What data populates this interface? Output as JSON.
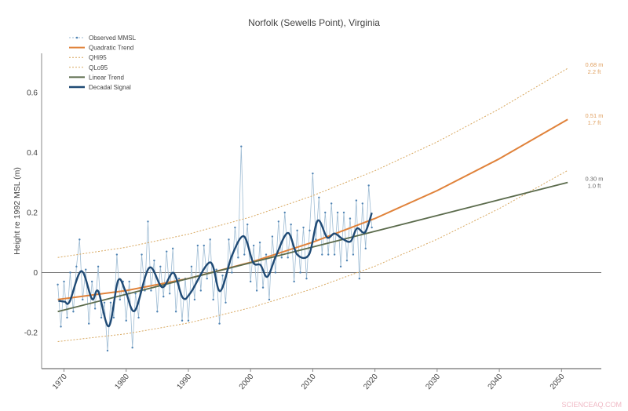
{
  "chart_data": {
    "type": "line",
    "title": "Norfolk (Sewells Point), Virginia",
    "xlabel": "",
    "ylabel": "Height re 1992 MSL (m)",
    "xlim": [
      1966.4,
      2056.4
    ],
    "ylim": [
      -0.32,
      0.73
    ],
    "x_ticks": [
      "1970",
      "1980",
      "1990",
      "2000",
      "2010",
      "2020",
      "2030",
      "2040",
      "2050"
    ],
    "y_ticks": [
      "0.6",
      "0.4",
      "0.2",
      "0",
      "-0.2"
    ],
    "grid": false,
    "legend_position": "top-left",
    "colors": {
      "observed_line": "#9dbbd3",
      "observed_marker": "#4f83b3",
      "quadratic": "#e0823a",
      "band": "#d8a860",
      "linear": "#5b6b4c",
      "decadal": "#1f4a75",
      "zero_line": "#777777",
      "annotation_orange": "#e0a060",
      "annotation_gray": "#666666"
    },
    "series": [
      {
        "name": "Observed MMSL",
        "style": "line+markers",
        "x_start": 1969,
        "x_step": 0.5,
        "values": [
          -0.04,
          -0.18,
          -0.03,
          -0.15,
          0.0,
          -0.13,
          0.02,
          0.11,
          -0.09,
          0.01,
          -0.17,
          -0.03,
          -0.12,
          0.02,
          -0.15,
          -0.1,
          -0.26,
          -0.1,
          -0.15,
          0.06,
          -0.09,
          -0.03,
          -0.16,
          -0.03,
          -0.25,
          -0.07,
          -0.15,
          0.06,
          -0.06,
          0.17,
          -0.06,
          0.04,
          -0.13,
          0.02,
          -0.08,
          0.07,
          -0.07,
          0.08,
          -0.13,
          -0.02,
          -0.16,
          -0.02,
          -0.16,
          0.02,
          -0.09,
          0.09,
          -0.06,
          0.09,
          -0.02,
          0.11,
          -0.09,
          0.01,
          -0.17,
          -0.01,
          -0.1,
          0.11,
          0.0,
          0.15,
          0.05,
          0.42,
          0.06,
          0.16,
          -0.03,
          0.09,
          -0.06,
          0.1,
          -0.05,
          0.06,
          -0.09,
          0.12,
          0.0,
          0.17,
          0.05,
          0.2,
          0.05,
          0.16,
          -0.03,
          0.14,
          0.0,
          0.15,
          -0.02,
          0.14,
          0.33,
          0.11,
          0.25,
          0.06,
          0.2,
          0.06,
          0.23,
          0.06,
          0.2,
          0.02,
          0.2,
          0.04,
          0.18,
          0.06,
          0.24,
          -0.02,
          0.23,
          0.08,
          0.29,
          0.15
        ]
      },
      {
        "name": "Quadratic Trend",
        "style": "solid",
        "x": [
          1969,
          1980,
          1990,
          2000,
          2010,
          2020,
          2030,
          2040,
          2051
        ],
        "y": [
          -0.09,
          -0.06,
          -0.02,
          0.034,
          0.101,
          0.18,
          0.273,
          0.379,
          0.51
        ]
      },
      {
        "name": "QHi95",
        "style": "dotted",
        "x": [
          1969,
          1980,
          1990,
          2000,
          2010,
          2020,
          2030,
          2040,
          2051
        ],
        "y": [
          0.05,
          0.084,
          0.128,
          0.185,
          0.256,
          0.339,
          0.435,
          0.545,
          0.68
        ]
      },
      {
        "name": "QLo95",
        "style": "dotted",
        "x": [
          1969,
          1980,
          1990,
          2000,
          2010,
          2020,
          2030,
          2040,
          2051
        ],
        "y": [
          -0.23,
          -0.204,
          -0.168,
          -0.117,
          -0.054,
          0.021,
          0.111,
          0.213,
          0.34
        ]
      },
      {
        "name": "Linear Trend",
        "style": "solid",
        "x": [
          1969,
          2051
        ],
        "y": [
          -0.13,
          0.3
        ]
      },
      {
        "name": "Decadal Signal",
        "style": "thick",
        "x": [
          1969.1,
          1970.1,
          1970.9,
          1972.8,
          1974.5,
          1975.5,
          1977.2,
          1978.7,
          1979.9,
          1981.4,
          1983.7,
          1985.8,
          1987.6,
          1989.1,
          1990.4,
          1993.5,
          1995.1,
          1997.0,
          1998.9,
          2000.4,
          2001.6,
          2002.7,
          2004.1,
          2006.0,
          2007.5,
          2009.4,
          2010.8,
          2012.3,
          2013.5,
          2014.8,
          2016.1,
          2017.1,
          2018.4,
          2019.5
        ],
        "y": [
          -0.094,
          -0.097,
          -0.097,
          0.005,
          -0.088,
          -0.062,
          -0.179,
          -0.027,
          -0.062,
          -0.127,
          0.016,
          -0.049,
          -0.001,
          -0.084,
          -0.066,
          0.034,
          -0.062,
          0.056,
          0.121,
          0.034,
          0.025,
          -0.014,
          0.056,
          0.132,
          0.06,
          0.06,
          0.173,
          0.117,
          0.13,
          0.112,
          0.104,
          0.147,
          0.134,
          0.199
        ]
      }
    ],
    "annotations": [
      {
        "m": "0.68 m",
        "ft": "2.2 ft",
        "x": 2051,
        "y": 0.68,
        "color": "orange"
      },
      {
        "m": "0.51 m",
        "ft": "1.7 ft",
        "x": 2051,
        "y": 0.51,
        "color": "orange"
      },
      {
        "m": "0.30 m",
        "ft": "1.0 ft",
        "x": 2051,
        "y": 0.3,
        "color": "gray"
      }
    ]
  },
  "watermark": "SCIENCEAQ.COM"
}
